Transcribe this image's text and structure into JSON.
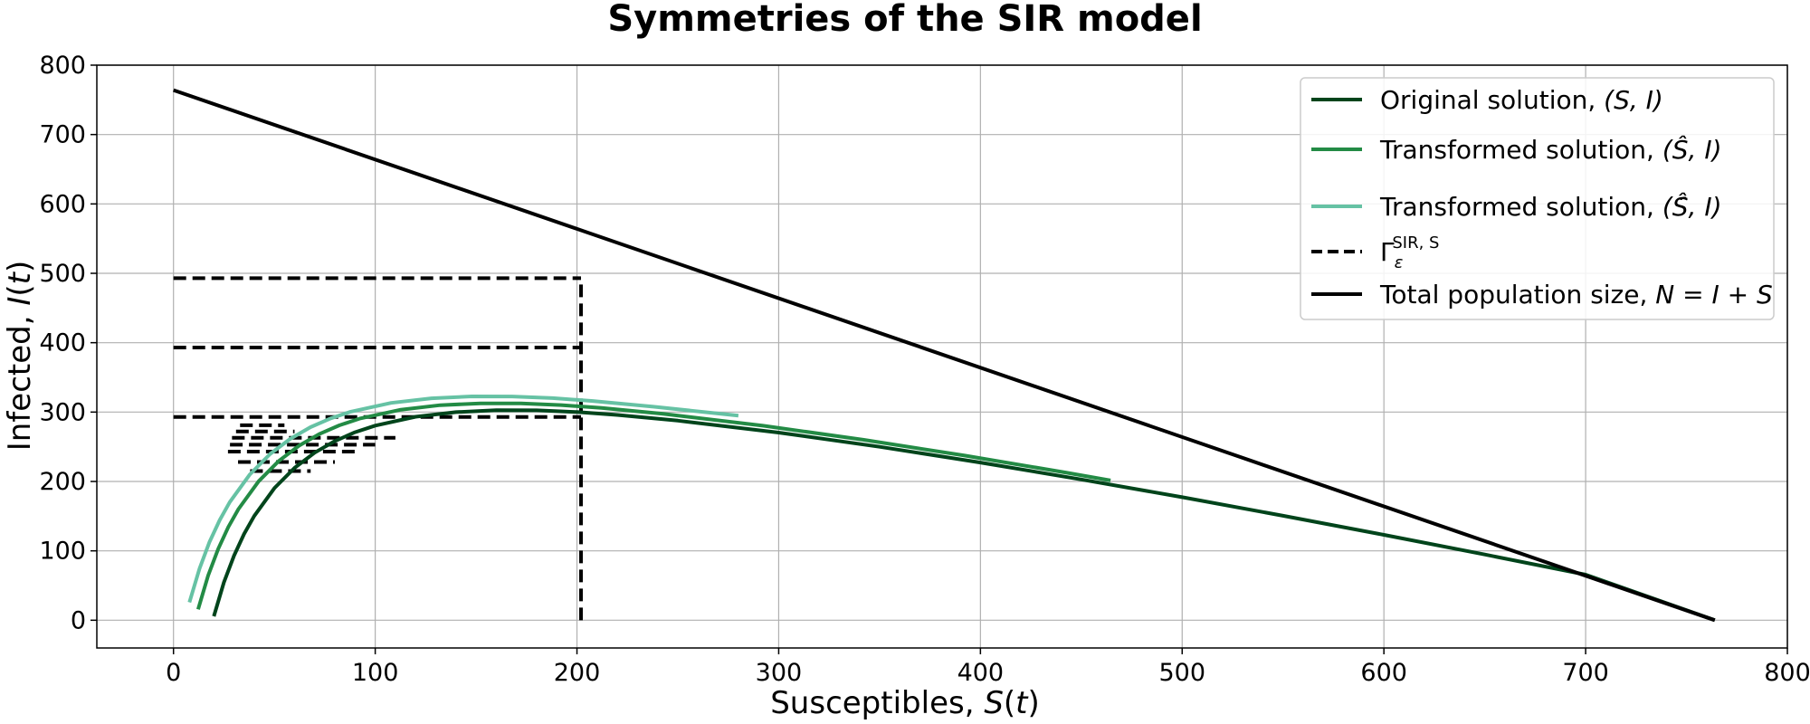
{
  "chart_data": {
    "type": "line",
    "title": "Symmetries of the SIR model",
    "xlabel": "Susceptibles, S(t)",
    "ylabel": "Infected, I(t)",
    "xlim": [
      -38,
      800
    ],
    "ylim": [
      -40,
      800
    ],
    "xticks": [
      "0",
      "100",
      "200",
      "300",
      "400",
      "500",
      "600",
      "700",
      "800"
    ],
    "yticks": [
      "0",
      "100",
      "200",
      "300",
      "400",
      "500",
      "600",
      "700",
      "800"
    ],
    "grid": true,
    "legend_position": "top-right",
    "series": [
      {
        "name": "Original solution, (S, I)",
        "color": "#00441b",
        "x": [
          20,
          25,
          30,
          35,
          40,
          50,
          60,
          70,
          80,
          90,
          100,
          120,
          140,
          160,
          180,
          200,
          220,
          250,
          300,
          350,
          400,
          450,
          500,
          550,
          600,
          650,
          700,
          764
        ],
        "y": [
          5.7,
          54.5,
          93.1,
          124.4,
          150.2,
          190.3,
          219.6,
          241.5,
          258.2,
          270.9,
          280.5,
          293.2,
          299.9,
          302.6,
          302.5,
          300.1,
          295.9,
          287.7,
          270.4,
          250.0,
          227.3,
          202.9,
          177.3,
          150.6,
          123.0,
          94.7,
          65.7,
          0
        ]
      },
      {
        "name": "Transformed solution, (Ŝ, I)",
        "color": "#238b45",
        "x": [
          12.2,
          17.2,
          22.2,
          27.2,
          32.2,
          42.2,
          52.2,
          62.2,
          72.2,
          82.2,
          92.2,
          112.2,
          132.2,
          152.2,
          172.2,
          192.2,
          212.2,
          242.2,
          292.2,
          342.2,
          392.2,
          442.2,
          464.5
        ],
        "y": [
          15.7,
          64.5,
          103.1,
          134.4,
          160.2,
          200.3,
          229.6,
          251.5,
          268.2,
          280.9,
          290.5,
          303.2,
          309.9,
          312.6,
          312.5,
          310.1,
          305.9,
          297.7,
          280.4,
          260.0,
          237.3,
          212.9,
          201.4
        ]
      },
      {
        "name": "Transformed solution, (Ŝ̂, I)",
        "color": "#66c2a4",
        "x": [
          7.9,
          12.9,
          17.9,
          22.9,
          27.9,
          37.9,
          47.9,
          57.9,
          67.9,
          77.9,
          87.9,
          107.9,
          127.9,
          147.9,
          167.9,
          187.9,
          207.9,
          237.9,
          280.0
        ],
        "y": [
          25.7,
          74.5,
          113.1,
          144.4,
          170.2,
          210.3,
          239.6,
          261.5,
          278.2,
          290.9,
          300.5,
          313.2,
          319.9,
          322.6,
          322.5,
          320.1,
          315.9,
          307.7,
          295.0
        ]
      },
      {
        "name": "Γ_ε^{SIR,S}",
        "color": "#000000",
        "dashed": true,
        "segments": [
          {
            "x": [
              0,
              202
            ],
            "y": [
              293,
              293
            ]
          },
          {
            "x": [
              0,
              202
            ],
            "y": [
              393,
              393
            ]
          },
          {
            "x": [
              0,
              202
            ],
            "y": [
              493,
              493
            ]
          },
          {
            "x": [
              202,
              202
            ],
            "y": [
              0,
              493
            ]
          },
          {
            "x": [
              38,
              68
            ],
            "y": [
              215,
              215
            ]
          },
          {
            "x": [
              32,
              80
            ],
            "y": [
              228,
              228
            ]
          },
          {
            "x": [
              27,
              92
            ],
            "y": [
              243,
              243
            ]
          },
          {
            "x": [
              28,
              100
            ],
            "y": [
              253,
              253
            ]
          },
          {
            "x": [
              29,
              110
            ],
            "y": [
              263,
              263
            ]
          },
          {
            "x": [
              31,
              60
            ],
            "y": [
              272,
              272
            ]
          },
          {
            "x": [
              33,
              55
            ],
            "y": [
              281,
              281
            ]
          }
        ]
      },
      {
        "name": "Total population size, N = I + S",
        "color": "#000000",
        "x": [
          0,
          764
        ],
        "y": [
          764,
          0
        ]
      }
    ]
  },
  "legend": [
    {
      "pre": "Original solution, ",
      "math": "(S, I)",
      "series": 0
    },
    {
      "pre": "Transformed solution, ",
      "math": "(Ŝ, I)",
      "series": 1
    },
    {
      "pre": "Transformed solution, ",
      "math": "(Ŝ̂, I)",
      "series": 2
    },
    {
      "pre": "Γ",
      "sub": "ε",
      "sup": "SIR, S",
      "series": 3
    },
    {
      "pre": "Total population size, ",
      "math": "N = I + S",
      "series": 4
    }
  ]
}
